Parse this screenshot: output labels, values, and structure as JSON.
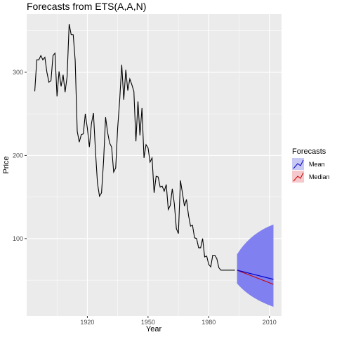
{
  "chart_data": {
    "type": "line",
    "title": "Forecasts from ETS(A,A,N)",
    "xlabel": "Year",
    "ylabel": "Price",
    "xlim": [
      1890,
      2016
    ],
    "ylim": [
      7,
      370
    ],
    "x_ticks": [
      1920,
      1950,
      1980,
      2010
    ],
    "y_ticks": [
      100,
      200,
      300
    ],
    "grid": true,
    "legend": {
      "title": "Forecasts",
      "position": "right",
      "entries": [
        {
          "label": "Mean",
          "color": "#0000cc",
          "fill": "#c8c8f5"
        },
        {
          "label": "Median",
          "color": "#cc0000",
          "fill": "#f5c8cc"
        }
      ]
    },
    "colors": {
      "panel": "#ebebeb",
      "grid": "#ffffff",
      "history": "#000000",
      "interval": "#8080f0"
    },
    "history": {
      "x": [
        1894,
        1895,
        1896,
        1897,
        1898,
        1899,
        1900,
        1901,
        1902,
        1903,
        1904,
        1905,
        1906,
        1907,
        1908,
        1909,
        1910,
        1911,
        1912,
        1913,
        1914,
        1915,
        1916,
        1917,
        1918,
        1919,
        1920,
        1921,
        1922,
        1923,
        1924,
        1925,
        1926,
        1927,
        1928,
        1929,
        1930,
        1931,
        1932,
        1933,
        1934,
        1935,
        1936,
        1937,
        1938,
        1939,
        1940,
        1941,
        1942,
        1943,
        1944,
        1945,
        1946,
        1947,
        1948,
        1949,
        1950,
        1951,
        1952,
        1953,
        1954,
        1955,
        1956,
        1957,
        1958,
        1959,
        1960,
        1961,
        1962,
        1963,
        1964,
        1965,
        1966,
        1967,
        1968,
        1969,
        1970,
        1971,
        1972,
        1973,
        1974,
        1975,
        1976,
        1977,
        1978,
        1979,
        1980,
        1981,
        1982,
        1983,
        1984,
        1985,
        1986,
        1987,
        1988,
        1989,
        1990,
        1991,
        1992,
        1993
      ],
      "y": [
        277,
        315,
        315,
        320,
        315,
        318,
        300,
        288,
        290,
        320,
        323,
        271,
        301,
        283,
        297,
        276,
        295,
        358,
        345,
        345,
        314,
        229,
        216,
        225,
        226,
        250,
        233,
        210,
        238,
        251,
        205,
        167,
        151,
        155,
        193,
        246,
        228,
        215,
        210,
        180,
        185,
        233,
        267,
        309,
        267,
        303,
        278,
        292,
        285,
        277,
        217,
        265,
        224,
        257,
        197,
        213,
        209,
        192,
        197,
        155,
        175,
        174,
        162,
        163,
        157,
        165,
        135,
        140,
        160,
        142,
        112,
        106,
        170,
        155,
        139,
        147,
        128,
        115,
        116,
        101,
        100,
        89,
        89,
        100,
        78,
        79,
        69,
        66,
        80,
        80,
        76,
        65,
        62,
        62,
        62,
        62,
        62,
        62,
        62,
        62
      ]
    },
    "forecast": {
      "x": [
        1994,
        2012
      ],
      "mean": [
        62,
        51
      ],
      "median": [
        62,
        45
      ],
      "lower": [
        62,
        18
      ],
      "upper": [
        62,
        117
      ],
      "interval_start_width": [
        50,
        80
      ]
    }
  }
}
